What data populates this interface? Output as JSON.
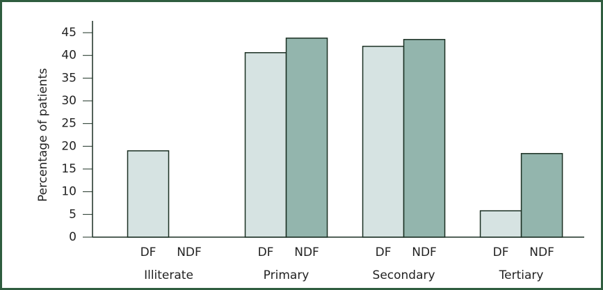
{
  "chart_data": {
    "type": "bar",
    "y_label": "Percentage of patients",
    "categories": [
      "Illiterate",
      "Primary",
      "Secondary",
      "Tertiary"
    ],
    "series": [
      {
        "name": "DF",
        "color": "#d6e3e2",
        "values": [
          19,
          40.6,
          42,
          5.8
        ]
      },
      {
        "name": "NDF",
        "color": "#93b5ad",
        "values": [
          0,
          43.8,
          43.5,
          18.4
        ]
      }
    ],
    "ylim": [
      0,
      45
    ],
    "yticks": [
      0,
      5,
      10,
      15,
      20,
      25,
      30,
      35,
      40,
      45
    ],
    "grid": false
  }
}
